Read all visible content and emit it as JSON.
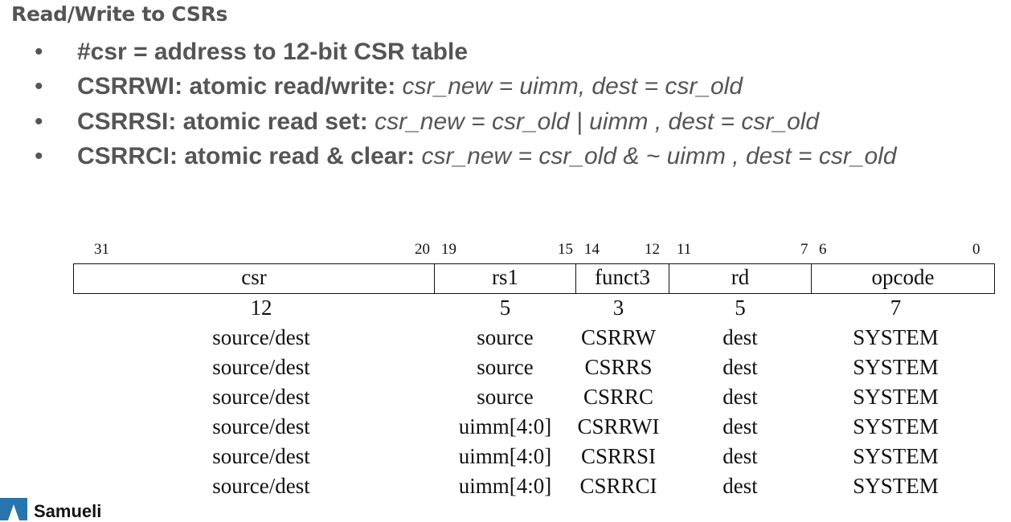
{
  "title": "Read/Write to CSRs",
  "bullet_glyph": "•",
  "bullets": [
    {
      "bold": "#csr = address to 12-bit CSR table",
      "ital": ""
    },
    {
      "bold": "CSRRWI: atomic read/write:",
      "ital": "csr_new = uimm, dest = csr_old"
    },
    {
      "bold": "CSRRSI: atomic read set:",
      "ital": "csr_new = csr_old | uimm , dest = csr_old"
    },
    {
      "bold": "CSRRCI: atomic read & clear:",
      "ital": "csr_new = csr_old & ~ uimm , dest = csr_old"
    }
  ],
  "bit_labels": [
    "31",
    "20",
    "19",
    "15",
    "14",
    "12",
    "11",
    "7",
    "6",
    "0"
  ],
  "fields": [
    "csr",
    "rs1",
    "funct3",
    "rd",
    "opcode"
  ],
  "widths": [
    "12",
    "5",
    "3",
    "5",
    "7"
  ],
  "rows": [
    [
      "source/dest",
      "source",
      "CSRRW",
      "dest",
      "SYSTEM"
    ],
    [
      "source/dest",
      "source",
      "CSRRS",
      "dest",
      "SYSTEM"
    ],
    [
      "source/dest",
      "source",
      "CSRRC",
      "dest",
      "SYSTEM"
    ],
    [
      "source/dest",
      "uimm[4:0]",
      "CSRRWI",
      "dest",
      "SYSTEM"
    ],
    [
      "source/dest",
      "uimm[4:0]",
      "CSRRSI",
      "dest",
      "SYSTEM"
    ],
    [
      "source/dest",
      "uimm[4:0]",
      "CSRRCI",
      "dest",
      "SYSTEM"
    ]
  ],
  "logo": {
    "text": "Samueli",
    "icon": "ucla-samueli-logo-icon",
    "color": "#2774AE"
  }
}
